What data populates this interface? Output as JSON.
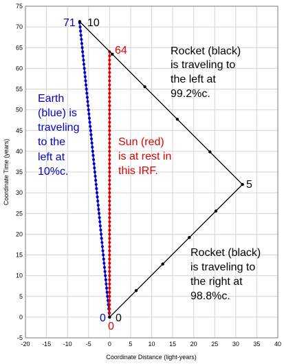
{
  "chart_data": {
    "type": "line",
    "xlabel": "Coordinate Distance (light-years)",
    "ylabel": "Coordinate Time (years)",
    "xlim": [
      -20,
      40
    ],
    "ylim": [
      -5,
      75
    ],
    "x_ticks": [
      -20,
      -15,
      -10,
      -5,
      0,
      5,
      10,
      15,
      20,
      25,
      30,
      35,
      40
    ],
    "y_ticks": [
      -5,
      0,
      5,
      10,
      15,
      20,
      25,
      30,
      35,
      40,
      45,
      50,
      55,
      60,
      65,
      70,
      75
    ],
    "grid": true,
    "series": [
      {
        "role": "earth",
        "color": "#0000cc",
        "markers": "dense",
        "start": [
          0,
          0
        ],
        "end": [
          -7.1,
          71
        ],
        "start_label": "0",
        "end_label": "71"
      },
      {
        "role": "sun",
        "color": "#e00000",
        "markers": "dense",
        "start": [
          0,
          0
        ],
        "end": [
          0,
          64
        ],
        "start_label": "0",
        "end_label": "64"
      },
      {
        "role": "rocket",
        "color": "#000000",
        "markers": "sparse",
        "points": [
          [
            0,
            0
          ],
          [
            31.6,
            32.0
          ],
          [
            -7.1,
            71.3
          ]
        ],
        "point_labels": [
          "0",
          "5",
          "10"
        ]
      }
    ],
    "annotations": {
      "rocket_left": [
        "Rocket (black)",
        "is traveling to",
        "the left at",
        "99.2%c."
      ],
      "earth": [
        "Earth",
        "(blue) is",
        "traveling",
        "to the",
        "left at",
        "10%c."
      ],
      "sun": [
        "Sun (red)",
        "is at rest in",
        "this IRF."
      ],
      "rocket_right": [
        "Rocket (black)",
        "is traveling to",
        "the right at",
        "98.8%c."
      ]
    }
  }
}
